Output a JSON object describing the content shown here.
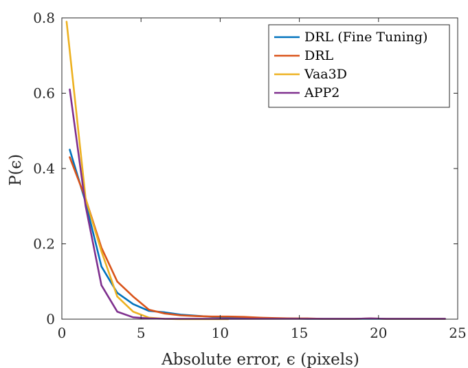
{
  "chart_data": {
    "type": "line",
    "title": "",
    "xlabel": "Absolute error, ϵ (pixels)",
    "ylabel": "P(ϵ)",
    "xlim": [
      0,
      25
    ],
    "ylim": [
      0,
      0.8
    ],
    "xticks": [
      0,
      5,
      10,
      15,
      20,
      25
    ],
    "xtick_labels": [
      "0",
      "5",
      "10",
      "15",
      "20",
      "25"
    ],
    "yticks": [
      0,
      0.2,
      0.4,
      0.6,
      0.8
    ],
    "ytick_labels": [
      "0",
      "0.2",
      "0.4",
      "0.6",
      "0.8"
    ],
    "grid": false,
    "legend_position": "top-right",
    "series": [
      {
        "name": "DRL (Fine Tuning)",
        "color": "#0072BD",
        "x": [
          0.5,
          1.5,
          2.5,
          3.5,
          4.5,
          5.5,
          6.5,
          7.5,
          8.5,
          9.5,
          10.5,
          11.5,
          12.5,
          13.5,
          14.5,
          15.5,
          16.5,
          17.5,
          18.5,
          19.5,
          20.5,
          21.5,
          22.5,
          23.5,
          24.2
        ],
        "y": [
          0.45,
          0.31,
          0.14,
          0.07,
          0.04,
          0.022,
          0.018,
          0.012,
          0.009,
          0.006,
          0.005,
          0.004,
          0.003,
          0.002,
          0.002,
          0.001,
          0.001,
          0.001,
          0.001,
          0.001,
          0.001,
          0.001,
          0.001,
          0.001,
          0.001
        ]
      },
      {
        "name": "DRL",
        "color": "#D95319",
        "x": [
          0.5,
          1.5,
          2.5,
          3.5,
          4.5,
          5.5,
          6.5,
          7.5,
          8.5,
          9.5,
          10.5,
          11.5,
          12.5,
          13.5,
          14.5,
          15.5,
          16.5,
          17.5,
          18.5,
          19.5,
          20.5,
          21.5,
          22.5,
          23.5,
          24.2
        ],
        "y": [
          0.43,
          0.32,
          0.19,
          0.1,
          0.06,
          0.025,
          0.015,
          0.01,
          0.008,
          0.007,
          0.007,
          0.006,
          0.004,
          0.003,
          0.002,
          0.002,
          0.001,
          0.001,
          0.001,
          0.002,
          0.001,
          0.001,
          0.001,
          0.001,
          0.001
        ]
      },
      {
        "name": "Vaa3D",
        "color": "#EDB120",
        "x": [
          0.3,
          1.5,
          2.5,
          3.5,
          4.5,
          5.5,
          6.5,
          7.5,
          8.5,
          9.5,
          10.5
        ],
        "y": [
          0.79,
          0.32,
          0.18,
          0.06,
          0.02,
          0.004,
          0.001,
          0.0,
          0.0,
          0.0,
          0.0
        ]
      },
      {
        "name": "APP2",
        "color": "#7E2F8E",
        "x": [
          0.5,
          1.5,
          2.5,
          3.5,
          4.5,
          5.5,
          6.5,
          7.5,
          8.5,
          9.5,
          10.5,
          11.5,
          12.5,
          13.5,
          14.5,
          15.5,
          16.5,
          17.5,
          18.5,
          19.5,
          20.5,
          21.5,
          22.5,
          23.5,
          24.2
        ],
        "y": [
          0.61,
          0.3,
          0.09,
          0.02,
          0.005,
          0.002,
          0.001,
          0.001,
          0.001,
          0.001,
          0.001,
          0.001,
          0.001,
          0.001,
          0.001,
          0.001,
          0.001,
          0.001,
          0.001,
          0.002,
          0.001,
          0.001,
          0.001,
          0.001,
          0.001
        ]
      }
    ]
  }
}
